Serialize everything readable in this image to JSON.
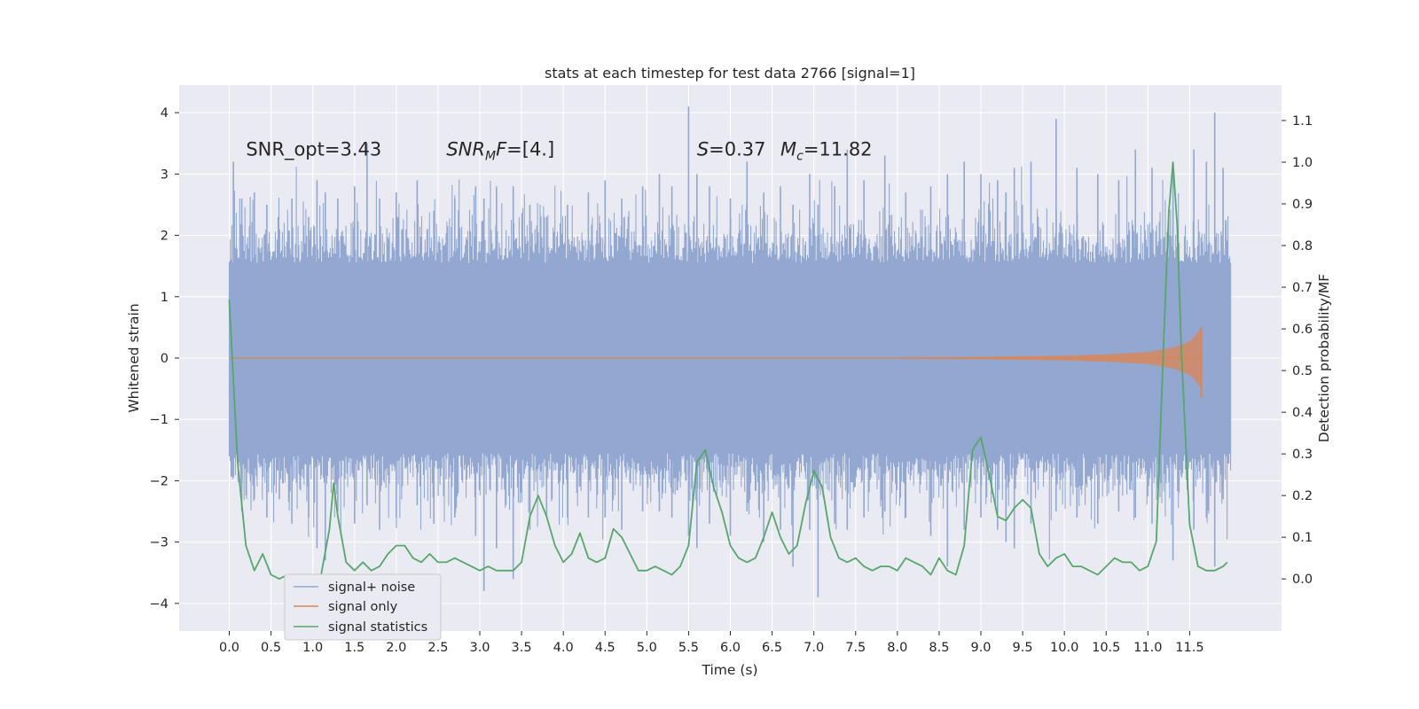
{
  "chart_data": {
    "type": "line",
    "title": "stats at each timestep for test data 2766 [signal=1]",
    "xlabel": "Time (s)",
    "ylabel": "Whitened strain",
    "y2label": "Detection probability/MF",
    "xlim": [
      -0.6,
      12.6
    ],
    "ylim": [
      -4.45,
      4.45
    ],
    "y2lim": [
      -0.125,
      1.185
    ],
    "x_ticks": [
      0.0,
      0.5,
      1.0,
      1.5,
      2.0,
      2.5,
      3.0,
      3.5,
      4.0,
      4.5,
      5.0,
      5.5,
      6.0,
      6.5,
      7.0,
      7.5,
      8.0,
      8.5,
      9.0,
      9.5,
      10.0,
      10.5,
      11.0,
      11.5
    ],
    "x_tick_labels": [
      "0.0",
      "0.5",
      "1.0",
      "1.5",
      "2.0",
      "2.5",
      "3.0",
      "3.5",
      "4.0",
      "4.5",
      "5.0",
      "5.5",
      "6.0",
      "6.5",
      "7.0",
      "7.5",
      "8.0",
      "8.5",
      "9.0",
      "9.5",
      "10.0",
      "10.5",
      "11.0",
      "11.5"
    ],
    "y_ticks": [
      4,
      3,
      2,
      1,
      0,
      -1,
      -2,
      -3,
      -4
    ],
    "y_tick_labels": [
      "4",
      "3",
      "2",
      "1",
      "0",
      "−1",
      "−2",
      "−3",
      "−4"
    ],
    "y2_ticks": [
      1.1,
      1.0,
      0.9,
      0.8,
      0.7,
      0.6,
      0.5,
      0.4,
      0.3,
      0.2,
      0.1,
      0.0
    ],
    "y2_tick_labels": [
      "1.1",
      "1.0",
      "0.9",
      "0.8",
      "0.7",
      "0.6",
      "0.5",
      "0.4",
      "0.3",
      "0.2",
      "0.1",
      "0.0"
    ],
    "annotations": [
      {
        "text": "SNR_opt=3.43",
        "x": 0.2,
        "y": 3.3
      },
      {
        "text": "SNR_MF=[4.]",
        "x": 2.6,
        "y": 3.3
      },
      {
        "text": "S=0.37",
        "x": 5.6,
        "y": 3.3
      },
      {
        "text": "M_c=11.82",
        "x": 6.6,
        "y": 3.3
      }
    ],
    "legend": [
      "signal+ noise",
      "signal only",
      "signal statistics"
    ],
    "legend_loc": "lower-left",
    "series": [
      {
        "name": "signal+ noise",
        "axis": "left",
        "color": "#92a8d1",
        "t_range": [
          0.0,
          11.99
        ],
        "dense_band": [
          -1.3,
          1.3
        ],
        "bursts": [
          [
            0.05,
            3.2,
            -1.6
          ],
          [
            0.15,
            2.6,
            -2.5
          ],
          [
            0.3,
            2.7,
            -2.3
          ],
          [
            0.45,
            2.5,
            -2.6
          ],
          [
            0.6,
            2.1,
            -2.3
          ],
          [
            0.75,
            2.6,
            -2.7
          ],
          [
            0.95,
            2.3,
            -2.6
          ],
          [
            1.05,
            2.9,
            -3.1
          ],
          [
            1.15,
            2.7,
            -3.3
          ],
          [
            1.3,
            2.6,
            -2.5
          ],
          [
            1.5,
            2.8,
            -2.7
          ],
          [
            1.65,
            3.5,
            -2.4
          ],
          [
            1.8,
            2.6,
            -2.8
          ],
          [
            2.0,
            2.7,
            -2.6
          ],
          [
            2.25,
            2.9,
            -2.4
          ],
          [
            2.45,
            2.4,
            -2.7
          ],
          [
            2.7,
            2.6,
            -2.6
          ],
          [
            2.95,
            2.8,
            -2.9
          ],
          [
            3.05,
            2.6,
            -3.8
          ],
          [
            3.2,
            2.8,
            -3.1
          ],
          [
            3.4,
            2.8,
            -3.6
          ],
          [
            3.6,
            2.5,
            -2.8
          ],
          [
            3.8,
            2.3,
            -2.6
          ],
          [
            4.05,
            2.5,
            -2.6
          ],
          [
            4.3,
            2.7,
            -2.6
          ],
          [
            4.5,
            2.9,
            -2.6
          ],
          [
            4.7,
            2.6,
            -2.8
          ],
          [
            4.95,
            2.8,
            -2.5
          ],
          [
            5.15,
            3.0,
            -2.5
          ],
          [
            5.3,
            2.8,
            -2.6
          ],
          [
            5.5,
            4.1,
            -2.9
          ],
          [
            5.6,
            3.0,
            -3.1
          ],
          [
            5.75,
            2.8,
            -2.7
          ],
          [
            6.0,
            2.6,
            -2.9
          ],
          [
            6.2,
            3.2,
            -2.5
          ],
          [
            6.4,
            2.7,
            -3.0
          ],
          [
            6.6,
            2.8,
            -2.8
          ],
          [
            6.75,
            2.5,
            -3.4
          ],
          [
            6.95,
            3.0,
            -2.8
          ],
          [
            7.05,
            2.5,
            -3.9
          ],
          [
            7.25,
            2.8,
            -2.7
          ],
          [
            7.4,
            3.4,
            -2.8
          ],
          [
            7.6,
            2.9,
            -2.6
          ],
          [
            7.85,
            3.3,
            -2.5
          ],
          [
            8.1,
            2.7,
            -2.6
          ],
          [
            8.4,
            2.8,
            -2.9
          ],
          [
            8.6,
            3.0,
            -3.4
          ],
          [
            8.8,
            3.2,
            -2.8
          ],
          [
            9.0,
            3.0,
            -2.6
          ],
          [
            9.2,
            2.9,
            -2.8
          ],
          [
            9.3,
            2.7,
            -3.0
          ],
          [
            9.4,
            3.1,
            -3.1
          ],
          [
            9.6,
            3.2,
            -2.7
          ],
          [
            9.9,
            3.9,
            -2.5
          ],
          [
            10.15,
            3.1,
            -2.6
          ],
          [
            10.4,
            3.0,
            -2.7
          ],
          [
            10.65,
            2.9,
            -2.5
          ],
          [
            10.85,
            3.4,
            -2.6
          ],
          [
            11.05,
            3.1,
            -2.7
          ],
          [
            11.3,
            3.0,
            -3.3
          ],
          [
            11.55,
            3.4,
            -2.8
          ],
          [
            11.7,
            3.2,
            -2.6
          ],
          [
            11.8,
            4.0,
            -3.4
          ],
          [
            11.9,
            3.1,
            -2.3
          ]
        ]
      },
      {
        "name": "signal only",
        "axis": "left",
        "color": "#dd8452",
        "t_range": [
          0.0,
          11.64
        ],
        "envelope": [
          [
            8.0,
            0.01
          ],
          [
            9.0,
            0.02
          ],
          [
            10.0,
            0.04
          ],
          [
            10.5,
            0.06
          ],
          [
            11.0,
            0.1
          ],
          [
            11.3,
            0.17
          ],
          [
            11.5,
            0.27
          ],
          [
            11.6,
            0.42
          ],
          [
            11.64,
            0.5
          ]
        ]
      },
      {
        "name": "signal statistics",
        "axis": "right",
        "color": "#55a868",
        "x": [
          0.0,
          0.1,
          0.2,
          0.3,
          0.4,
          0.5,
          0.6,
          0.7,
          0.8,
          0.9,
          1.0,
          1.1,
          1.2,
          1.25,
          1.3,
          1.4,
          1.5,
          1.6,
          1.7,
          1.8,
          1.9,
          2.0,
          2.1,
          2.2,
          2.3,
          2.4,
          2.5,
          2.6,
          2.7,
          2.8,
          2.9,
          3.0,
          3.1,
          3.2,
          3.3,
          3.4,
          3.5,
          3.6,
          3.7,
          3.8,
          3.9,
          4.0,
          4.1,
          4.2,
          4.3,
          4.4,
          4.5,
          4.6,
          4.7,
          4.8,
          4.9,
          5.0,
          5.1,
          5.2,
          5.3,
          5.4,
          5.5,
          5.6,
          5.7,
          5.8,
          5.9,
          6.0,
          6.1,
          6.2,
          6.3,
          6.4,
          6.5,
          6.6,
          6.7,
          6.8,
          6.9,
          7.0,
          7.1,
          7.2,
          7.3,
          7.4,
          7.5,
          7.6,
          7.7,
          7.8,
          7.9,
          8.0,
          8.1,
          8.2,
          8.3,
          8.4,
          8.5,
          8.6,
          8.7,
          8.8,
          8.9,
          9.0,
          9.1,
          9.2,
          9.3,
          9.4,
          9.5,
          9.6,
          9.7,
          9.8,
          9.9,
          10.0,
          10.1,
          10.2,
          10.3,
          10.4,
          10.5,
          10.6,
          10.7,
          10.8,
          10.9,
          11.0,
          11.1,
          11.2,
          11.25,
          11.3,
          11.35,
          11.4,
          11.5,
          11.6,
          11.7,
          11.8,
          11.9,
          11.95
        ],
        "values": [
          0.67,
          0.28,
          0.08,
          0.02,
          0.06,
          0.01,
          0.0,
          0.01,
          0.01,
          0.0,
          0.01,
          0.01,
          0.12,
          0.23,
          0.15,
          0.04,
          0.02,
          0.04,
          0.02,
          0.03,
          0.06,
          0.08,
          0.08,
          0.05,
          0.04,
          0.06,
          0.04,
          0.04,
          0.05,
          0.04,
          0.03,
          0.02,
          0.03,
          0.02,
          0.02,
          0.02,
          0.04,
          0.15,
          0.2,
          0.15,
          0.08,
          0.04,
          0.06,
          0.11,
          0.05,
          0.04,
          0.05,
          0.12,
          0.1,
          0.06,
          0.02,
          0.02,
          0.03,
          0.02,
          0.01,
          0.03,
          0.08,
          0.28,
          0.31,
          0.22,
          0.16,
          0.08,
          0.05,
          0.04,
          0.05,
          0.1,
          0.16,
          0.1,
          0.06,
          0.08,
          0.18,
          0.26,
          0.22,
          0.1,
          0.05,
          0.04,
          0.05,
          0.03,
          0.02,
          0.03,
          0.03,
          0.02,
          0.05,
          0.04,
          0.03,
          0.01,
          0.05,
          0.02,
          0.01,
          0.08,
          0.31,
          0.34,
          0.25,
          0.15,
          0.14,
          0.17,
          0.19,
          0.17,
          0.06,
          0.03,
          0.05,
          0.06,
          0.03,
          0.03,
          0.02,
          0.01,
          0.03,
          0.05,
          0.04,
          0.04,
          0.02,
          0.03,
          0.09,
          0.63,
          0.88,
          1.0,
          0.85,
          0.55,
          0.13,
          0.03,
          0.02,
          0.02,
          0.03,
          0.04
        ]
      }
    ]
  }
}
